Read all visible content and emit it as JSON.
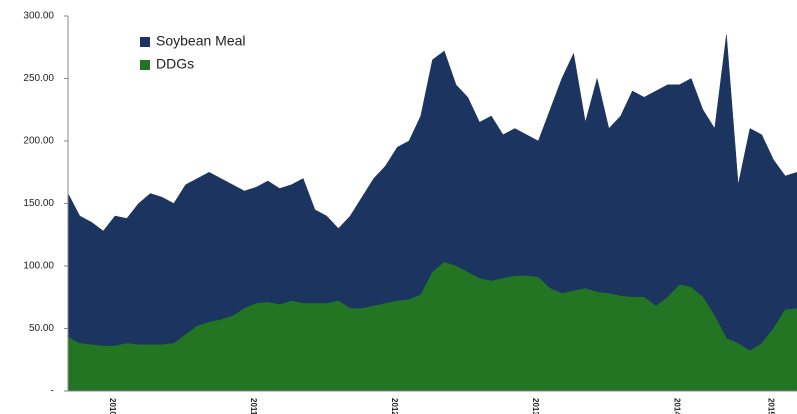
{
  "chart_data": {
    "type": "area",
    "categories": [
      null,
      null,
      null,
      null,
      "2010",
      null,
      null,
      null,
      null,
      null,
      null,
      null,
      null,
      null,
      null,
      null,
      "2011",
      null,
      null,
      null,
      null,
      null,
      null,
      null,
      null,
      null,
      null,
      null,
      "2012",
      null,
      null,
      null,
      null,
      null,
      null,
      null,
      null,
      null,
      null,
      null,
      "2013",
      null,
      null,
      null,
      null,
      null,
      null,
      null,
      null,
      null,
      null,
      null,
      "2014",
      null,
      null,
      null,
      null,
      null,
      null,
      null,
      "2015",
      null,
      null
    ],
    "series": [
      {
        "name": "Soybean Meal",
        "color": "#1c3560",
        "values": [
          158,
          140,
          135,
          128,
          140,
          138,
          150,
          158,
          155,
          150,
          165,
          170,
          175,
          170,
          165,
          160,
          163,
          168,
          162,
          165,
          170,
          145,
          140,
          130,
          140,
          155,
          170,
          180,
          195,
          200,
          220,
          265,
          272,
          245,
          235,
          215,
          220,
          205,
          210,
          205,
          200,
          225,
          250,
          270,
          215,
          250,
          210,
          220,
          240,
          235,
          240,
          245,
          245,
          250,
          225,
          210,
          285,
          165,
          210,
          205,
          185,
          172,
          175
        ]
      },
      {
        "name": "DDGs",
        "color": "#237524",
        "values": [
          43,
          38,
          37,
          36,
          36,
          38,
          37,
          37,
          37,
          38,
          45,
          52,
          55,
          57,
          60,
          66,
          70,
          71,
          69,
          72,
          70,
          70,
          70,
          72,
          66,
          66,
          68,
          70,
          72,
          73,
          77,
          95,
          103,
          100,
          95,
          90,
          88,
          90,
          92,
          92,
          91,
          82,
          78,
          80,
          82,
          79,
          78,
          76,
          75,
          75,
          68,
          75,
          85,
          83,
          75,
          60,
          42,
          38,
          32,
          38,
          50,
          65,
          66
        ]
      }
    ],
    "ylim": [
      0,
      300
    ],
    "yticks": [
      {
        "value": 0,
        "label": "-"
      },
      {
        "value": 50,
        "label": "50.00"
      },
      {
        "value": 100,
        "label": "100.00"
      },
      {
        "value": 150,
        "label": "150.00"
      },
      {
        "value": 200,
        "label": "200.00"
      },
      {
        "value": 250,
        "label": "250.00"
      },
      {
        "value": 300,
        "label": "300.00"
      }
    ]
  }
}
